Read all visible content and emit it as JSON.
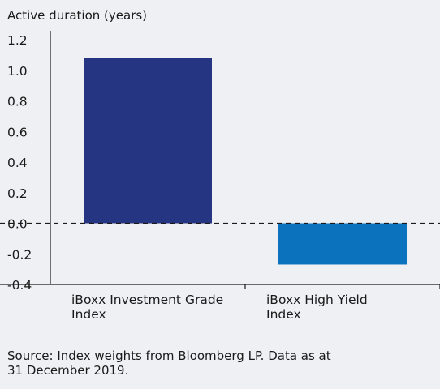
{
  "chart_data": {
    "type": "bar",
    "ylabel": "Active duration (years)",
    "categories": [
      [
        "iBoxx Investment Grade",
        "Index"
      ],
      [
        "iBoxx High Yield",
        "Index"
      ]
    ],
    "values": [
      1.08,
      -0.27
    ],
    "colors": [
      "#253581",
      "#0b72bd"
    ],
    "ylim": [
      -0.4,
      1.2
    ],
    "yticks": [
      "-0.4",
      "-0.2",
      "0.0",
      "0.2",
      "0.4",
      "0.6",
      "0.8",
      "1.0",
      "1.2"
    ],
    "baseline": 0.0,
    "baseline_style": "dashed",
    "grid": false
  },
  "source": {
    "line1": "Source: Index weights from Bloomberg LP. Data as at",
    "line2": "31 December 2019."
  }
}
